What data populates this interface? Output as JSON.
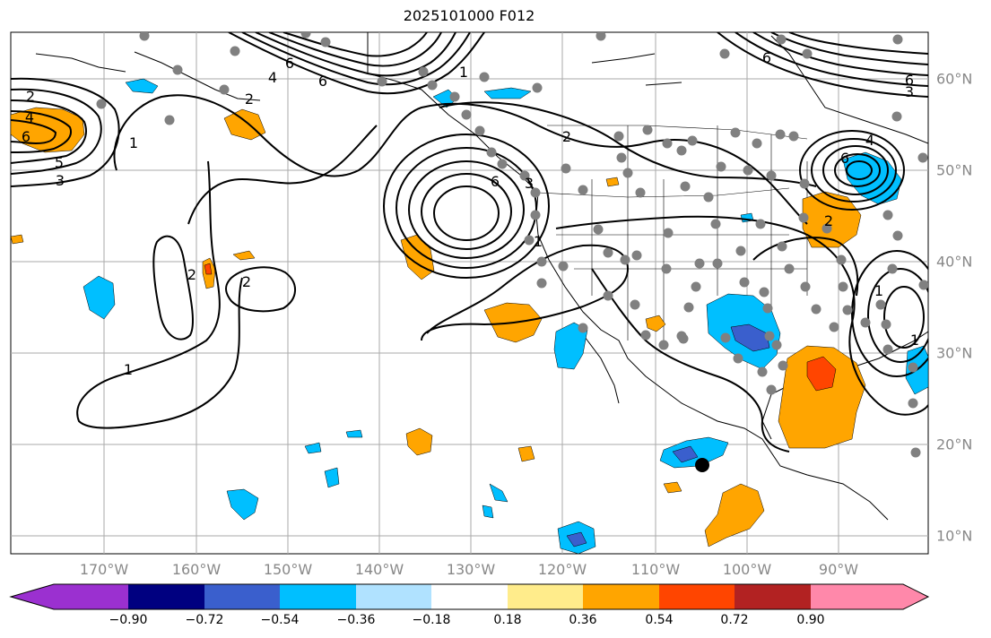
{
  "title": "2025101000 F012",
  "longitude_labels": [
    "170°W",
    "160°W",
    "150°W",
    "140°W",
    "130°W",
    "120°W",
    "110°W",
    "100°W",
    "90°W"
  ],
  "latitude_labels": [
    "60°N",
    "50°N",
    "40°N",
    "30°N",
    "20°N",
    "10°N"
  ],
  "contour_labels": [
    "2",
    "4",
    "6",
    "5",
    "3",
    "1",
    "6",
    "6",
    "2",
    "1",
    "2",
    "2",
    "1",
    "2",
    "6",
    "4",
    "6",
    "3",
    "2",
    "1",
    "1",
    "6",
    "3",
    "4",
    "6",
    "1"
  ],
  "colorbar": {
    "ticks": [
      "−0.90",
      "−0.72",
      "−0.54",
      "−0.36",
      "−0.18",
      "0.18",
      "0.36",
      "0.54",
      "0.72",
      "0.90"
    ],
    "colors": [
      "#9b30d0",
      "#000080",
      "#3a5fcd",
      "#00bfff",
      "#b0e2ff",
      "#ffffff",
      "#ffec8b",
      "#ffa500",
      "#ff4500",
      "#b22222",
      "#ff88aa"
    ]
  },
  "colors": {
    "negative_fill": "#00bfff",
    "strong_negative_fill": "#3a5fcd",
    "positive_fill": "#ffa500",
    "strong_positive_fill": "#ff4500",
    "stations": "#808080",
    "gridlines": "#aaaaaa",
    "labels": "#888888"
  }
}
